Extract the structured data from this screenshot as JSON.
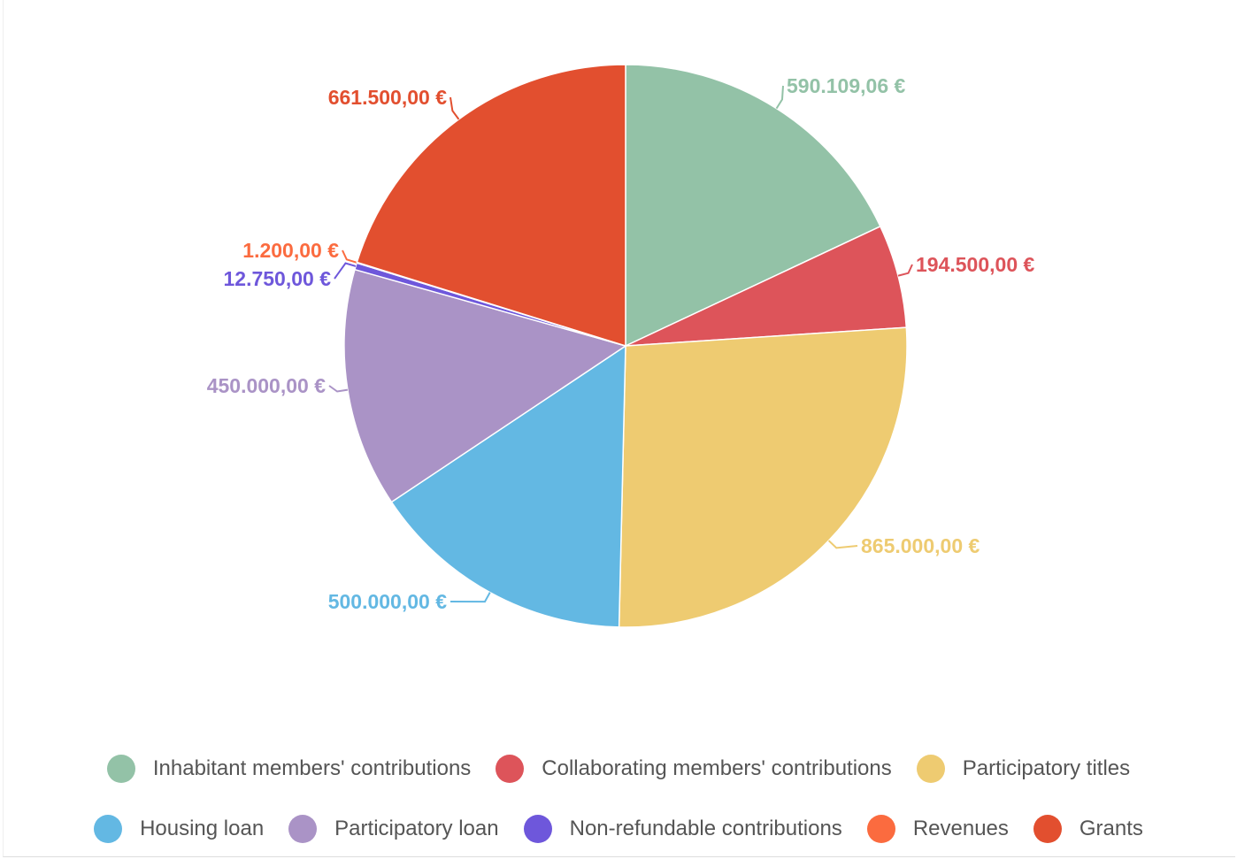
{
  "chart_data": {
    "type": "pie",
    "title": "",
    "legend_position": "bottom",
    "slices": [
      {
        "name": "Inhabitant members' contributions",
        "value": 590109.06,
        "label": "590.109,06 €",
        "color": "#93c2a7"
      },
      {
        "name": "Collaborating members' contributions",
        "value": 194500.0,
        "label": "194.500,00 €",
        "color": "#dd545a"
      },
      {
        "name": "Participatory titles",
        "value": 865000.0,
        "label": "865.000,00 €",
        "color": "#eecb71"
      },
      {
        "name": "Housing loan",
        "value": 500000.0,
        "label": "500.000,00 €",
        "color": "#63b8e3"
      },
      {
        "name": "Participatory loan",
        "value": 450000.0,
        "label": "450.000,00 €",
        "color": "#aa93c6"
      },
      {
        "name": "Non-refundable contributions",
        "value": 12750.0,
        "label": "12.750,00 €",
        "color": "#6e57db"
      },
      {
        "name": "Revenues",
        "value": 1200.0,
        "label": "1.200,00 €",
        "color": "#fb6b3f"
      },
      {
        "name": "Grants",
        "value": 661500.0,
        "label": "661.500,00 €",
        "color": "#e24f2f"
      }
    ]
  }
}
